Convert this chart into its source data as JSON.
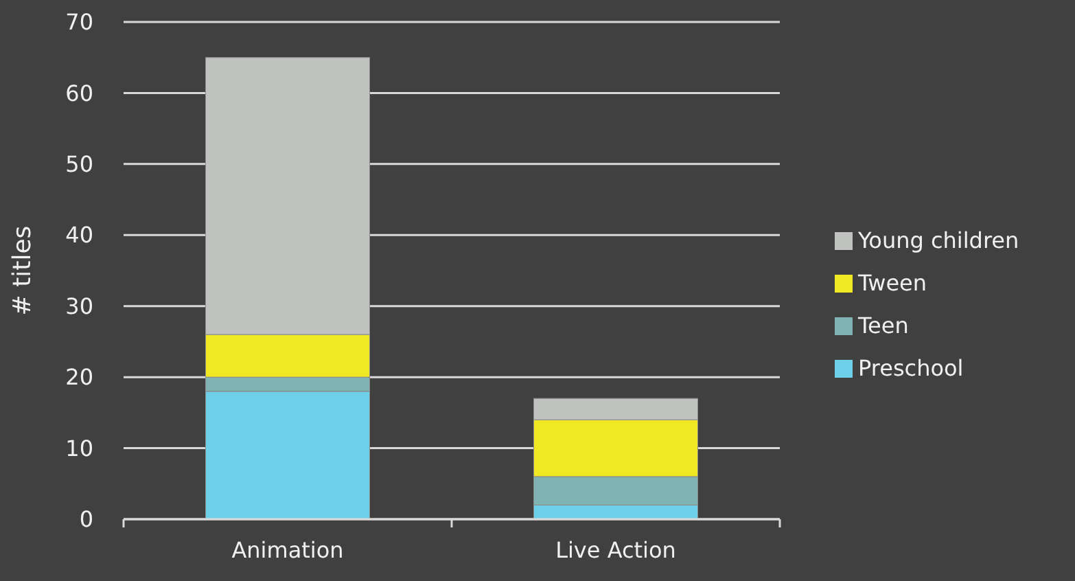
{
  "chart_data": {
    "type": "bar",
    "stacked": true,
    "ylabel": "# titles",
    "categories": [
      "Animation",
      "Live Action"
    ],
    "series": [
      {
        "name": "Preschool",
        "color": "#6ecfe8",
        "values": [
          18,
          2
        ]
      },
      {
        "name": "Teen",
        "color": "#80b3b3",
        "values": [
          2,
          4
        ]
      },
      {
        "name": "Tween",
        "color": "#f0e823",
        "values": [
          6,
          8
        ]
      },
      {
        "name": "Young children",
        "color": "#c0c2c0",
        "values": [
          39,
          3
        ]
      }
    ],
    "ylim": [
      0,
      70
    ],
    "yticks": [
      0,
      10,
      20,
      30,
      40,
      50,
      60,
      70
    ],
    "grid": "y",
    "legend": "right"
  }
}
